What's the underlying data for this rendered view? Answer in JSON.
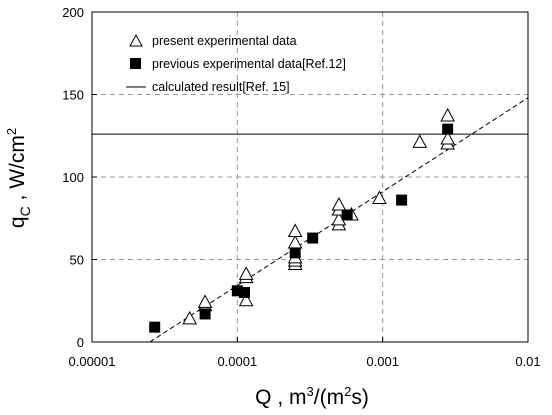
{
  "chart_data": {
    "type": "scatter",
    "title": "",
    "x_scale": "log",
    "xlim": [
      1e-05,
      0.01
    ],
    "ylim": [
      0,
      200
    ],
    "x_ticks": [
      1e-05,
      0.0001,
      0.001,
      0.01
    ],
    "x_tick_labels": [
      "0.00001",
      "0.0001",
      "0.001",
      "0.01"
    ],
    "y_ticks": [
      0,
      50,
      100,
      150,
      200
    ],
    "y_tick_labels": [
      "0",
      "50",
      "100",
      "150",
      "200"
    ],
    "grid": "dashed",
    "legend_position": "top-left",
    "xlabel": {
      "main": "Q , m",
      "sup1": "3",
      "mid": "/(m",
      "sup2": "2",
      "end": "s)"
    },
    "ylabel": {
      "main": "q",
      "sub": "C",
      "mid": " , W/cm",
      "sup": "2"
    },
    "series": [
      {
        "name": "present experimental data",
        "marker": "open-triangle",
        "color": "#000000",
        "points": [
          [
            4.7e-05,
            14
          ],
          [
            6e-05,
            22
          ],
          [
            6e-05,
            24
          ],
          [
            0.000115,
            25
          ],
          [
            0.000115,
            39
          ],
          [
            0.000115,
            41
          ],
          [
            0.00025,
            47
          ],
          [
            0.00025,
            49
          ],
          [
            0.00025,
            51
          ],
          [
            0.00025,
            60
          ],
          [
            0.00025,
            67
          ],
          [
            0.0005,
            71
          ],
          [
            0.0005,
            74
          ],
          [
            0.0005,
            80
          ],
          [
            0.0005,
            83
          ],
          [
            0.00061,
            77
          ],
          [
            0.00095,
            87
          ],
          [
            0.0018,
            121
          ],
          [
            0.0028,
            120
          ],
          [
            0.0028,
            123
          ],
          [
            0.0028,
            137
          ]
        ]
      },
      {
        "name": "previous experimental data[Ref.12]",
        "marker": "filled-square",
        "color": "#000000",
        "points": [
          [
            2.7e-05,
            9
          ],
          [
            6e-05,
            17
          ],
          [
            0.0001,
            31
          ],
          [
            0.000112,
            30
          ],
          [
            0.00025,
            54
          ],
          [
            0.00033,
            63
          ],
          [
            0.00057,
            77
          ],
          [
            0.00135,
            86
          ],
          [
            0.0028,
            129
          ]
        ]
      },
      {
        "name": "calculated result[Ref. 15]",
        "marker": "solid-line",
        "color": "#000000",
        "y_constant": 126
      },
      {
        "name": "",
        "marker": "dashed-line",
        "color": "#000000",
        "line_points": [
          [
            2.5e-05,
            0
          ],
          [
            0.01,
            148
          ]
        ]
      }
    ]
  }
}
